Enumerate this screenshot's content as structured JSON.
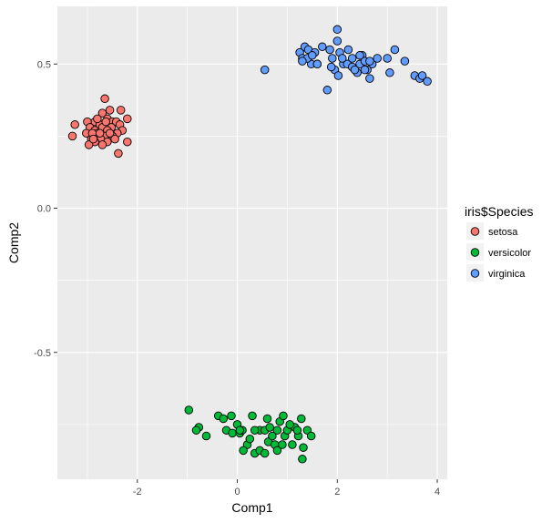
{
  "chart_data": {
    "type": "scatter",
    "title": "",
    "xlabel": "Comp1",
    "ylabel": "Comp2",
    "xlim": [
      -3.6,
      4.2
    ],
    "ylim": [
      -0.94,
      0.7
    ],
    "x_ticks": [
      -2,
      0,
      2,
      4
    ],
    "x_tick_labels": [
      "-2",
      "0",
      "2",
      "4"
    ],
    "y_ticks": [
      -0.5,
      0.0,
      0.5
    ],
    "y_tick_labels": [
      "-0.5",
      "0.0",
      "0.5"
    ],
    "grid": true,
    "legend": {
      "title": "iris$Species",
      "placement": "right",
      "entries": [
        "setosa",
        "versicolor",
        "virginica"
      ]
    },
    "colors": {
      "setosa": "#F8766D",
      "versicolor": "#00BA38",
      "virginica": "#619CFF",
      "panel": "#EBEBEB",
      "grid": "#FFFFFF",
      "point_outline": "#000000"
    },
    "series": [
      {
        "name": "setosa",
        "points": [
          [
            -2.65,
            0.38
          ],
          [
            -2.55,
            0.34
          ],
          [
            -2.33,
            0.34
          ],
          [
            -2.7,
            0.33
          ],
          [
            -2.6,
            0.31
          ],
          [
            -2.85,
            0.3
          ],
          [
            -3.0,
            0.3
          ],
          [
            -3.25,
            0.29
          ],
          [
            -2.5,
            0.3
          ],
          [
            -2.42,
            0.3
          ],
          [
            -2.2,
            0.31
          ],
          [
            -2.75,
            0.29
          ],
          [
            -2.95,
            0.28
          ],
          [
            -2.7,
            0.28
          ],
          [
            -2.52,
            0.28
          ],
          [
            -2.35,
            0.29
          ],
          [
            -2.3,
            0.27
          ],
          [
            -2.85,
            0.27
          ],
          [
            -2.6,
            0.27
          ],
          [
            -2.4,
            0.26
          ],
          [
            -3.02,
            0.26
          ],
          [
            -2.8,
            0.26
          ],
          [
            -2.65,
            0.25
          ],
          [
            -2.5,
            0.25
          ],
          [
            -2.92,
            0.24
          ],
          [
            -2.73,
            0.24
          ],
          [
            -2.45,
            0.24
          ],
          [
            -3.3,
            0.25
          ],
          [
            -2.85,
            0.23
          ],
          [
            -2.6,
            0.23
          ],
          [
            -2.97,
            0.22
          ],
          [
            -2.7,
            0.22
          ],
          [
            -2.2,
            0.23
          ],
          [
            -2.9,
            0.26
          ],
          [
            -2.63,
            0.3
          ],
          [
            -2.8,
            0.31
          ],
          [
            -2.38,
            0.19
          ],
          [
            -2.55,
            0.26
          ],
          [
            -2.75,
            0.26
          ],
          [
            -2.88,
            0.24
          ]
        ]
      },
      {
        "name": "versicolor",
        "points": [
          [
            -0.97,
            -0.7
          ],
          [
            -0.77,
            -0.76
          ],
          [
            -0.82,
            -0.77
          ],
          [
            -0.62,
            -0.79
          ],
          [
            -0.38,
            -0.72
          ],
          [
            -0.28,
            -0.73
          ],
          [
            -0.22,
            -0.77
          ],
          [
            -0.1,
            -0.78
          ],
          [
            0.0,
            -0.75
          ],
          [
            -0.12,
            -0.72
          ],
          [
            0.05,
            -0.78
          ],
          [
            0.1,
            -0.77
          ],
          [
            0.2,
            -0.82
          ],
          [
            0.12,
            -0.84
          ],
          [
            0.25,
            -0.8
          ],
          [
            0.35,
            -0.85
          ],
          [
            0.45,
            -0.84
          ],
          [
            0.55,
            -0.85
          ],
          [
            0.62,
            -0.81
          ],
          [
            0.45,
            -0.77
          ],
          [
            0.55,
            -0.77
          ],
          [
            0.65,
            -0.76
          ],
          [
            0.7,
            -0.79
          ],
          [
            0.75,
            -0.82
          ],
          [
            0.8,
            -0.77
          ],
          [
            0.85,
            -0.74
          ],
          [
            0.92,
            -0.72
          ],
          [
            0.95,
            -0.79
          ],
          [
            1.0,
            -0.77
          ],
          [
            1.1,
            -0.82
          ],
          [
            1.15,
            -0.76
          ],
          [
            1.22,
            -0.79
          ],
          [
            1.28,
            -0.73
          ],
          [
            1.32,
            -0.83
          ],
          [
            1.4,
            -0.77
          ],
          [
            1.48,
            -0.79
          ],
          [
            1.3,
            -0.87
          ],
          [
            0.8,
            -0.84
          ],
          [
            0.6,
            -0.73
          ],
          [
            1.05,
            -0.75
          ],
          [
            0.35,
            -0.77
          ],
          [
            0.3,
            -0.72
          ],
          [
            0.9,
            -0.82
          ],
          [
            1.2,
            -0.77
          ],
          [
            0.05,
            -0.77
          ]
        ]
      },
      {
        "name": "virginica",
        "points": [
          [
            0.55,
            0.48
          ],
          [
            1.8,
            0.41
          ],
          [
            1.25,
            0.54
          ],
          [
            1.35,
            0.56
          ],
          [
            1.3,
            0.52
          ],
          [
            1.42,
            0.55
          ],
          [
            1.55,
            0.54
          ],
          [
            1.48,
            0.5
          ],
          [
            1.4,
            0.52
          ],
          [
            1.6,
            0.5
          ],
          [
            1.7,
            0.56
          ],
          [
            1.85,
            0.55
          ],
          [
            1.9,
            0.52
          ],
          [
            2.0,
            0.58
          ],
          [
            2.0,
            0.62
          ],
          [
            2.05,
            0.54
          ],
          [
            1.95,
            0.48
          ],
          [
            2.02,
            0.46
          ],
          [
            2.12,
            0.5
          ],
          [
            2.2,
            0.5
          ],
          [
            2.22,
            0.55
          ],
          [
            2.3,
            0.52
          ],
          [
            2.4,
            0.47
          ],
          [
            2.45,
            0.5
          ],
          [
            2.5,
            0.53
          ],
          [
            2.55,
            0.51
          ],
          [
            2.65,
            0.45
          ],
          [
            2.7,
            0.5
          ],
          [
            2.8,
            0.52
          ],
          [
            2.65,
            0.51
          ],
          [
            3.0,
            0.52
          ],
          [
            3.05,
            0.47
          ],
          [
            3.15,
            0.55
          ],
          [
            3.35,
            0.51
          ],
          [
            3.55,
            0.46
          ],
          [
            3.65,
            0.45
          ],
          [
            3.7,
            0.46
          ],
          [
            3.8,
            0.44
          ],
          [
            1.5,
            0.53
          ],
          [
            1.3,
            0.51
          ],
          [
            2.3,
            0.49
          ],
          [
            2.45,
            0.53
          ],
          [
            2.6,
            0.48
          ],
          [
            1.88,
            0.49
          ],
          [
            2.1,
            0.52
          ],
          [
            2.35,
            0.48
          ],
          [
            2.55,
            0.48
          ],
          [
            1.6,
            0.5
          ]
        ]
      }
    ]
  }
}
